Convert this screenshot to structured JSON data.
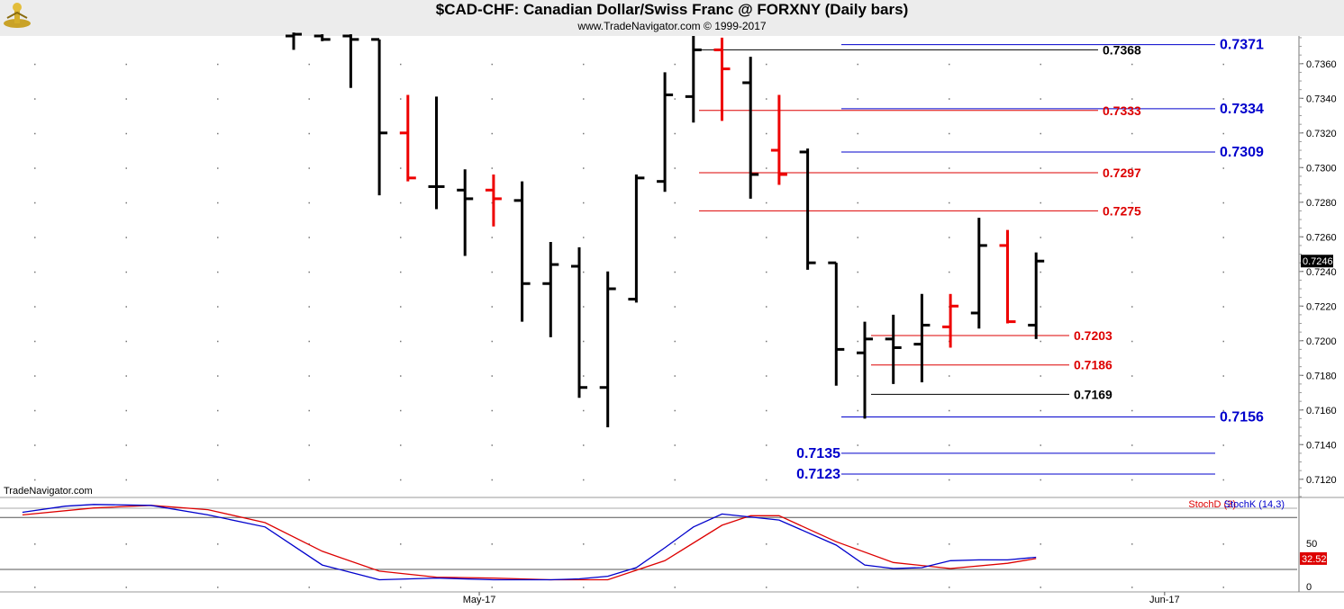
{
  "header": {
    "title": "$CAD-CHF:  Canadian Dollar/Swiss Franc @ FORXNY  (Daily bars)",
    "subtitle": "www.TradeNavigator.com © 1999-2017",
    "logo_icon": "trade-navigator-logo-icon"
  },
  "watermark": "TradeNavigator.com",
  "colors": {
    "bull_bar": "#000000",
    "bear_bar": "#ee0000",
    "stoch_d": "#dd0000",
    "stoch_k": "#0000cc",
    "blue_level": "#0000cc",
    "red_level": "#dd0000",
    "black_level": "#000000"
  },
  "chart_data": [
    {
      "type": "ohlc",
      "title": "$CAD-CHF:  Canadian Dollar/Swiss Franc @ FORXNY  (Daily bars)",
      "ylim": [
        0.711,
        0.7376
      ],
      "y_ticks": [
        0.712,
        0.714,
        0.716,
        0.718,
        0.72,
        0.722,
        0.724,
        0.726,
        0.728,
        0.73,
        0.732,
        0.734,
        0.736
      ],
      "y_tick_labels": [
        "0.7120",
        "0.7140",
        "0.7160",
        "0.7180",
        "0.7200",
        "0.7220",
        "0.7240",
        "0.7260",
        "0.7280",
        "0.7300",
        "0.7320",
        "0.7340",
        "0.7360"
      ],
      "x_tick_labels": [
        "May-17",
        "Jun-17"
      ],
      "x_tick_bar_index": [
        6.5,
        30.5
      ],
      "last_price": 0.7246,
      "last_price_label": "0.7246",
      "bars": [
        {
          "open": 0.7376,
          "high": 0.7378,
          "low": 0.7368,
          "close": 0.7377,
          "dir": "up"
        },
        {
          "open": 0.7376,
          "high": 0.7377,
          "low": 0.7373,
          "close": 0.7374,
          "dir": "up"
        },
        {
          "open": 0.7376,
          "high": 0.7377,
          "low": 0.7346,
          "close": 0.7374,
          "dir": "up"
        },
        {
          "open": 0.7374,
          "high": 0.7374,
          "low": 0.7284,
          "close": 0.732,
          "dir": "up"
        },
        {
          "open": 0.732,
          "high": 0.7342,
          "low": 0.7292,
          "close": 0.7294,
          "dir": "down"
        },
        {
          "open": 0.7289,
          "high": 0.7341,
          "low": 0.7276,
          "close": 0.7289,
          "dir": "up"
        },
        {
          "open": 0.7287,
          "high": 0.7299,
          "low": 0.7249,
          "close": 0.7282,
          "dir": "up"
        },
        {
          "open": 0.7287,
          "high": 0.7296,
          "low": 0.7266,
          "close": 0.7282,
          "dir": "down"
        },
        {
          "open": 0.7281,
          "high": 0.7292,
          "low": 0.7211,
          "close": 0.7233,
          "dir": "up"
        },
        {
          "open": 0.7233,
          "high": 0.7257,
          "low": 0.7202,
          "close": 0.7244,
          "dir": "up"
        },
        {
          "open": 0.7243,
          "high": 0.7254,
          "low": 0.7167,
          "close": 0.7173,
          "dir": "up"
        },
        {
          "open": 0.7173,
          "high": 0.724,
          "low": 0.715,
          "close": 0.723,
          "dir": "up"
        },
        {
          "open": 0.7224,
          "high": 0.7296,
          "low": 0.7222,
          "close": 0.7294,
          "dir": "up"
        },
        {
          "open": 0.7292,
          "high": 0.7355,
          "low": 0.7286,
          "close": 0.7342,
          "dir": "up"
        },
        {
          "open": 0.7341,
          "high": 0.7376,
          "low": 0.7326,
          "close": 0.7368,
          "dir": "up"
        },
        {
          "open": 0.7368,
          "high": 0.7375,
          "low": 0.7327,
          "close": 0.7357,
          "dir": "down"
        },
        {
          "open": 0.7349,
          "high": 0.7364,
          "low": 0.7282,
          "close": 0.7296,
          "dir": "up"
        },
        {
          "open": 0.731,
          "high": 0.7342,
          "low": 0.729,
          "close": 0.7296,
          "dir": "down"
        },
        {
          "open": 0.7309,
          "high": 0.7311,
          "low": 0.7241,
          "close": 0.7245,
          "dir": "up"
        },
        {
          "open": 0.7245,
          "high": 0.7245,
          "low": 0.7174,
          "close": 0.7195,
          "dir": "up"
        },
        {
          "open": 0.7193,
          "high": 0.7211,
          "low": 0.7155,
          "close": 0.7201,
          "dir": "up"
        },
        {
          "open": 0.7201,
          "high": 0.7215,
          "low": 0.7175,
          "close": 0.7196,
          "dir": "up"
        },
        {
          "open": 0.7198,
          "high": 0.7227,
          "low": 0.7176,
          "close": 0.7209,
          "dir": "up"
        },
        {
          "open": 0.7208,
          "high": 0.7227,
          "low": 0.7196,
          "close": 0.722,
          "dir": "down"
        },
        {
          "open": 0.7216,
          "high": 0.7271,
          "low": 0.7207,
          "close": 0.7255,
          "dir": "up"
        },
        {
          "open": 0.7255,
          "high": 0.7264,
          "low": 0.721,
          "close": 0.7211,
          "dir": "down"
        },
        {
          "open": 0.7209,
          "high": 0.7251,
          "low": 0.7201,
          "close": 0.7246,
          "dir": "up"
        }
      ],
      "levels": [
        {
          "value": 0.7371,
          "label": "0.7371",
          "color": "blue",
          "start_bar": 19.5,
          "label_side": "right"
        },
        {
          "value": 0.7368,
          "label": "0.7368",
          "color": "black",
          "start_bar": 14,
          "label_side": "mid"
        },
        {
          "value": 0.7334,
          "label": "0.7334",
          "color": "blue",
          "start_bar": 19.5,
          "label_side": "right"
        },
        {
          "value": 0.7333,
          "label": "0.7333",
          "color": "red",
          "start_bar": 14,
          "label_side": "mid"
        },
        {
          "value": 0.7309,
          "label": "0.7309",
          "color": "blue",
          "start_bar": 19.5,
          "label_side": "right"
        },
        {
          "value": 0.7297,
          "label": "0.7297",
          "color": "red",
          "start_bar": 14,
          "label_side": "mid"
        },
        {
          "value": 0.7275,
          "label": "0.7275",
          "color": "red",
          "start_bar": 14,
          "label_side": "mid"
        },
        {
          "value": 0.7203,
          "label": "0.7203",
          "color": "red",
          "start_bar": 20,
          "label_side": "near"
        },
        {
          "value": 0.7186,
          "label": "0.7186",
          "color": "red",
          "start_bar": 20,
          "label_side": "near"
        },
        {
          "value": 0.7169,
          "label": "0.7169",
          "color": "black",
          "start_bar": 20,
          "label_side": "near"
        },
        {
          "value": 0.7156,
          "label": "0.7156",
          "color": "blue",
          "start_bar": 19.5,
          "label_side": "right"
        },
        {
          "value": 0.7135,
          "label": "0.7135",
          "color": "blue",
          "start_bar": 19.5,
          "label_side": "left"
        },
        {
          "value": 0.7123,
          "label": "0.7123",
          "color": "blue",
          "start_bar": 19.5,
          "label_side": "left"
        }
      ]
    },
    {
      "type": "line",
      "indicator": "stochastic",
      "ylim": [
        -5,
        100
      ],
      "y_ticks": [
        0,
        50
      ],
      "y_tick_labels": [
        "0",
        "50"
      ],
      "reference_lines": [
        20,
        80
      ],
      "last_value": 32.52,
      "last_value_label": "32.52",
      "series": [
        {
          "name": "StochD (3)",
          "color": "red",
          "x": [
            -9.5,
            -7,
            -5,
            -3,
            -1,
            1,
            3,
            5,
            7,
            9,
            11,
            13,
            15,
            16,
            17,
            19,
            21,
            23,
            25,
            26
          ],
          "values": [
            83,
            91,
            94,
            89,
            74,
            41,
            18,
            11,
            10,
            8,
            8,
            30,
            71,
            82,
            82,
            52,
            28,
            21,
            27,
            32.52
          ]
        },
        {
          "name": "StochK (14,3)",
          "color": "blue",
          "x": [
            -9.5,
            -8,
            -7,
            -5,
            -3,
            -1,
            1,
            3,
            5,
            7,
            9,
            10,
            11,
            12,
            13,
            14,
            15,
            17,
            19,
            20,
            21,
            22,
            23,
            24,
            25,
            26
          ],
          "values": [
            86,
            93,
            95,
            94,
            83,
            69,
            25,
            8,
            10,
            8,
            8,
            9,
            12,
            22,
            45,
            69,
            84,
            77,
            48,
            25,
            21,
            22,
            30,
            31,
            31,
            34
          ]
        }
      ]
    }
  ]
}
